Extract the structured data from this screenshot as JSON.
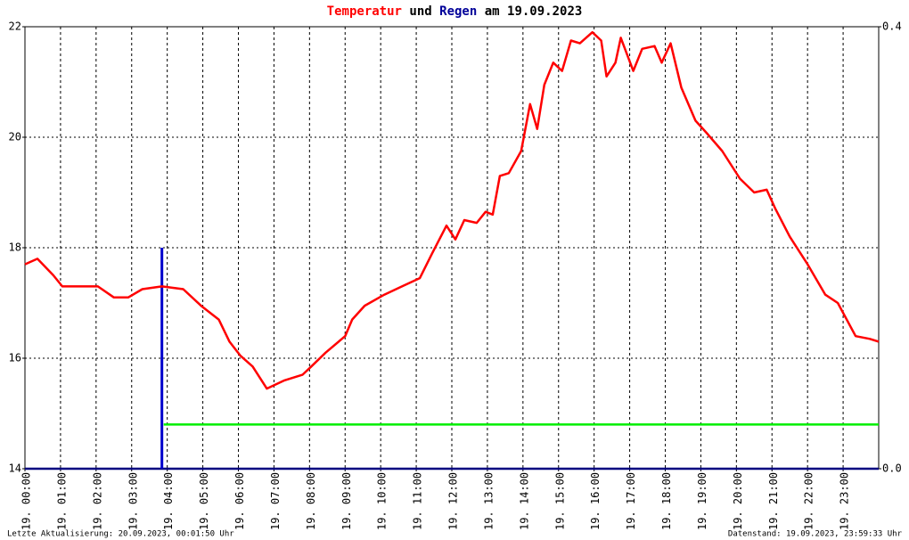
{
  "chart_data": {
    "type": "line",
    "title_join": "und",
    "title_suffix": "am 19.09.2023",
    "xlim": [
      0,
      24
    ],
    "xticks": [
      {
        "value": 0,
        "label": "19. 00:00"
      },
      {
        "value": 1,
        "label": "19. 01:00"
      },
      {
        "value": 2,
        "label": "19. 02:00"
      },
      {
        "value": 3,
        "label": "19. 03:00"
      },
      {
        "value": 4,
        "label": "19. 04:00"
      },
      {
        "value": 5,
        "label": "19. 05:00"
      },
      {
        "value": 6,
        "label": "19. 06:00"
      },
      {
        "value": 7,
        "label": "19. 07:00"
      },
      {
        "value": 8,
        "label": "19. 08:00"
      },
      {
        "value": 9,
        "label": "19. 09:00"
      },
      {
        "value": 10,
        "label": "19. 10:00"
      },
      {
        "value": 11,
        "label": "19. 11:00"
      },
      {
        "value": 12,
        "label": "19. 12:00"
      },
      {
        "value": 13,
        "label": "19. 13:00"
      },
      {
        "value": 14,
        "label": "19. 14:00"
      },
      {
        "value": 15,
        "label": "19. 15:00"
      },
      {
        "value": 16,
        "label": "19. 16:00"
      },
      {
        "value": 17,
        "label": "19. 17:00"
      },
      {
        "value": 18,
        "label": "19. 18:00"
      },
      {
        "value": 19,
        "label": "19. 19:00"
      },
      {
        "value": 20,
        "label": "19. 20:00"
      },
      {
        "value": 21,
        "label": "19. 21:00"
      },
      {
        "value": 22,
        "label": "19. 22:00"
      },
      {
        "value": 23,
        "label": "19. 23:00"
      }
    ],
    "ylim": [
      14,
      22
    ],
    "yticks": [
      14,
      16,
      18,
      20,
      22
    ],
    "y2lim": [
      0,
      0.4
    ],
    "y2ticks": [
      {
        "value": 0,
        "label": "0.0"
      },
      0.4
    ],
    "grid": true,
    "series": [
      {
        "name": "Temperatur",
        "color": "#ff0000",
        "type": "line",
        "x": [
          0,
          0.35,
          0.8,
          1.05,
          2.05,
          2.5,
          2.9,
          3.3,
          3.85,
          4.45,
          4.95,
          5.45,
          5.75,
          6.05,
          6.4,
          6.8,
          7.3,
          7.8,
          8.05,
          8.45,
          9.0,
          9.2,
          9.55,
          10.1,
          10.6,
          11.1,
          11.45,
          11.85,
          12.1,
          12.35,
          12.7,
          12.95,
          13.15,
          13.35,
          13.6,
          13.95,
          14.2,
          14.4,
          14.6,
          14.85,
          15.1,
          15.35,
          15.6,
          15.95,
          16.2,
          16.35,
          16.6,
          16.75,
          17.1,
          17.35,
          17.7,
          17.9,
          18.15,
          18.45,
          18.85,
          19.2,
          19.6,
          20.1,
          20.5,
          20.85,
          21.1,
          21.5,
          22.0,
          22.5,
          22.85,
          23.35,
          23.75,
          24.0
        ],
        "values": [
          17.7,
          17.8,
          17.5,
          17.3,
          17.3,
          17.1,
          17.1,
          17.25,
          17.3,
          17.25,
          16.95,
          16.7,
          16.3,
          16.05,
          15.85,
          15.45,
          15.6,
          15.7,
          15.85,
          16.1,
          16.4,
          16.7,
          16.95,
          17.15,
          17.3,
          17.45,
          17.9,
          18.4,
          18.15,
          18.5,
          18.45,
          18.65,
          18.6,
          19.3,
          19.35,
          19.75,
          20.6,
          20.15,
          20.95,
          21.35,
          21.2,
          21.75,
          21.7,
          21.9,
          21.75,
          21.1,
          21.35,
          21.8,
          21.2,
          21.6,
          21.65,
          21.35,
          21.7,
          20.9,
          20.3,
          20.05,
          19.75,
          19.25,
          19.0,
          19.05,
          18.7,
          18.2,
          17.7,
          17.15,
          17.0,
          16.4,
          16.35,
          16.3
        ]
      },
      {
        "name": "Regen",
        "color": "#0000cc",
        "type": "bar",
        "axis": "y2",
        "x": [
          3.85
        ],
        "values": [
          0.2
        ]
      },
      {
        "color": "#00ee00",
        "type": "line",
        "axis": "y2",
        "x": [
          3.9,
          24
        ],
        "values": [
          0.04,
          0.04
        ]
      }
    ],
    "footer_left": "Letzte Aktualisierung: 20.09.2023, 00:01:50 Uhr",
    "footer_right": "Datenstand: 19.09.2023, 23:59:33 Uhr"
  }
}
